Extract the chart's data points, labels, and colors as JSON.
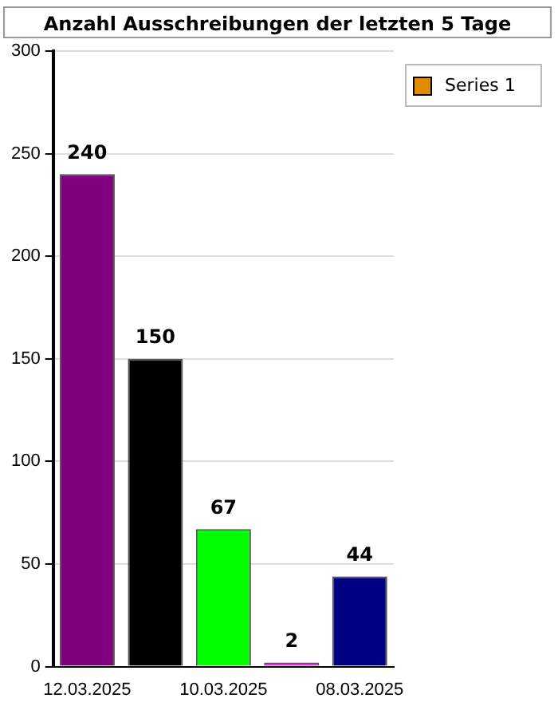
{
  "chart_data": {
    "type": "bar",
    "title": "Anzahl Ausschreibungen der letzten 5 Tage",
    "categories": [
      "12.03.2025",
      null,
      "10.03.2025",
      null,
      "08.03.2025"
    ],
    "series": [
      {
        "name": "Series 1",
        "color": "#e08a00",
        "colors": [
          "#800080",
          "#000000",
          "#00ff00",
          "#ff00ff",
          "#000080"
        ],
        "values": [
          240,
          150,
          67,
          2,
          44
        ]
      }
    ],
    "ylim": [
      0,
      300
    ],
    "yticks": [
      0,
      50,
      100,
      150,
      200,
      250,
      300
    ],
    "grid": "y",
    "legend": "top right",
    "data_labels": true
  }
}
